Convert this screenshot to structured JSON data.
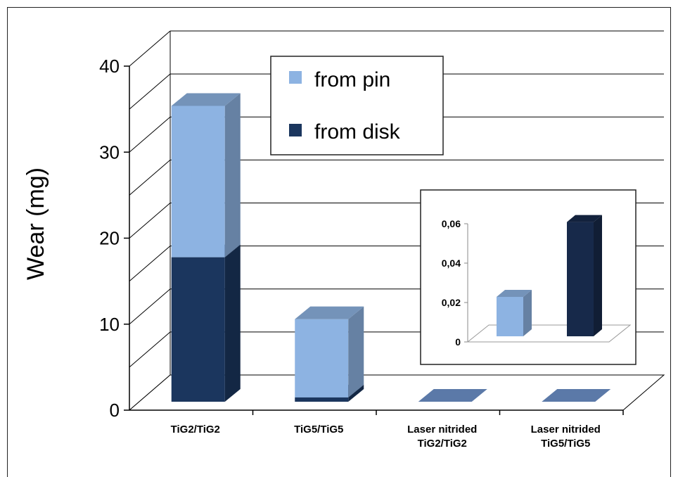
{
  "chart_data": {
    "type": "bar",
    "stacked": true,
    "categories": [
      [
        "TiG2/TiG2"
      ],
      [
        "TiG5/TiG5"
      ],
      [
        "Laser nitrided",
        "TiG2/TiG2"
      ],
      [
        "Laser nitrided",
        "TiG5/TiG5"
      ]
    ],
    "series": [
      {
        "name": "from disk",
        "values": [
          16.8,
          0.5,
          0,
          0
        ],
        "color": "#1b365e"
      },
      {
        "name": "from pin",
        "values": [
          17.6,
          9.1,
          0,
          0
        ],
        "color": "#8db3e2"
      }
    ],
    "ylabel": "Wear (mg)",
    "ylim": [
      0,
      40
    ],
    "yticks": [
      "0",
      "10",
      "20",
      "30",
      "40"
    ],
    "legend_position": "top-center",
    "grid": true,
    "inset": {
      "type": "bar",
      "values": [
        0.02,
        0.058
      ],
      "colors": [
        "#8db3e2",
        "#17294a"
      ],
      "ylim": [
        0,
        0.06
      ],
      "yticks": [
        "0",
        "0,02",
        "0,04",
        "0,06"
      ]
    }
  }
}
